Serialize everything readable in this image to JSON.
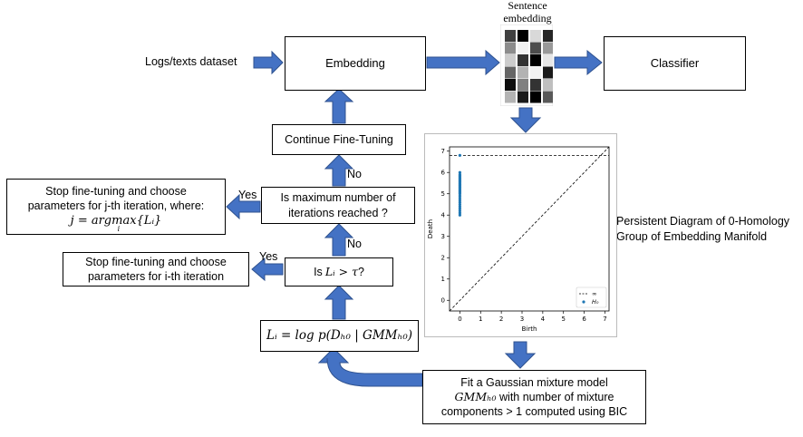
{
  "input_label": "Logs/texts dataset",
  "embedding_label": "Embedding",
  "sentence_embedding_label": "Sentence\nembedding",
  "classifier_label": "Classifier",
  "continue_label": "Continue Fine-Tuning",
  "max_iter": {
    "line1": "Is maximum number of",
    "line2": "iterations reached ?"
  },
  "threshold_prefix": "Is ",
  "threshold_math": "Lᵢ > τ",
  "threshold_suffix": " ?",
  "stop_j": {
    "line1": "Stop fine-tuning and choose",
    "line2": "parameters for j-th iteration, where:",
    "math": "j = argmax{Lᵢ}",
    "sub": "i"
  },
  "stop_i": {
    "line1": "Stop fine-tuning and choose",
    "line2": "parameters for i-th iteration"
  },
  "loglik_math": "Lᵢ = log p(Dₕ₀ | GMMₕ₀)",
  "gmm": {
    "line1": "Fit a Gaussian mixture model",
    "math": "GMMₕ₀",
    "line2_rest": " with number of mixture",
    "line3": "components > 1 computed using BIC"
  },
  "persistence_caption": {
    "line1": "Persistent Diagram of 0-Homology",
    "line2": "Group of Embedding Manifold"
  },
  "labels": {
    "yes": "Yes",
    "no": "No"
  },
  "colors": {
    "arrow": "#4472c4",
    "arrow_edge": "#2f528f",
    "points": "#1f77b4"
  },
  "embedding_cells": [
    [
      0.25,
      0.0,
      0.85,
      0.15
    ],
    [
      0.55,
      0.95,
      0.3,
      0.6
    ],
    [
      0.8,
      0.2,
      0.0,
      0.9
    ],
    [
      0.4,
      0.7,
      0.95,
      0.1
    ],
    [
      0.05,
      0.5,
      0.2,
      0.75
    ],
    [
      0.7,
      0.1,
      0.0,
      0.35
    ]
  ],
  "chart_data": {
    "type": "scatter",
    "xlabel": "Birth",
    "ylabel": "Death",
    "xlim": [
      -0.5,
      7.2
    ],
    "ylim": [
      -0.5,
      7.2
    ],
    "xticks": [
      "0",
      "1",
      "2",
      "3",
      "4",
      "5",
      "6",
      "7"
    ],
    "yticks": [
      "0",
      "1",
      "2",
      "3",
      "4",
      "5",
      "6",
      "7"
    ],
    "infinity_level": 6.8,
    "legend": [
      "∞",
      "H₀"
    ],
    "legend_position": "bottom-right",
    "series": [
      {
        "name": "H₀",
        "x": [
          0,
          0,
          0,
          0,
          0,
          0,
          0,
          0,
          0,
          0,
          0,
          0,
          0,
          0,
          0,
          0,
          0,
          0,
          0,
          0,
          0,
          0,
          0,
          0,
          0,
          0,
          0,
          0,
          0,
          0,
          0
        ],
        "y": [
          4.0,
          4.1,
          4.2,
          4.3,
          4.4,
          4.5,
          4.6,
          4.7,
          4.8,
          4.9,
          5.0,
          5.05,
          5.1,
          5.15,
          5.2,
          5.25,
          5.3,
          5.35,
          5.4,
          5.45,
          5.5,
          5.55,
          5.6,
          5.65,
          5.7,
          5.75,
          5.8,
          5.85,
          5.9,
          6.0,
          6.8
        ]
      }
    ]
  }
}
